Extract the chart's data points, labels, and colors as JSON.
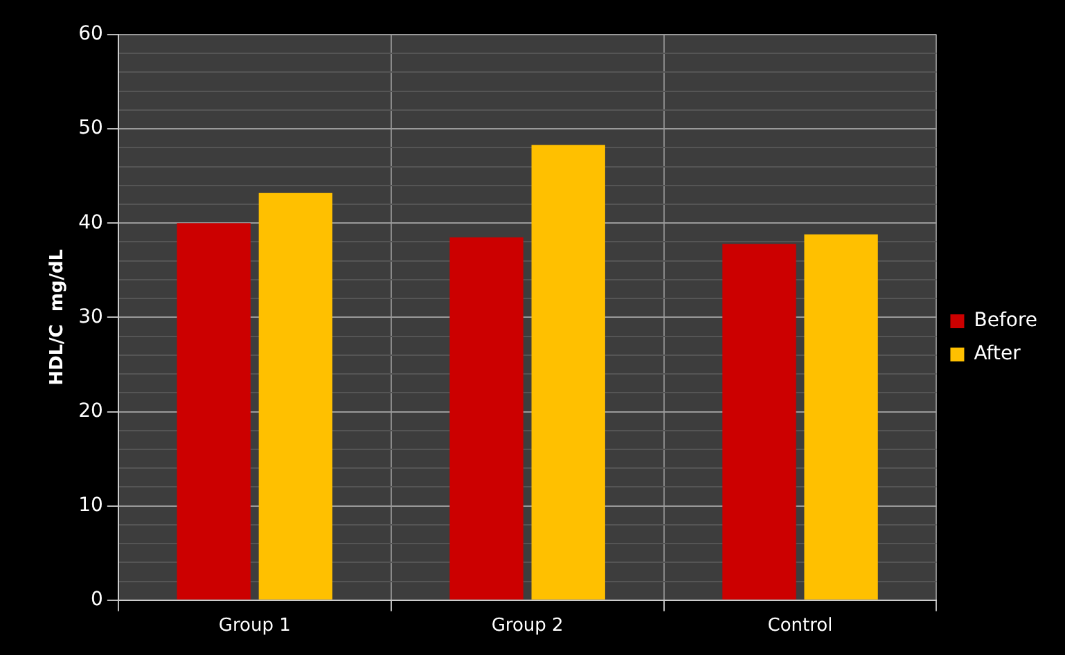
{
  "chart_data": {
    "type": "bar",
    "ylabel": "HDL/C  mg/dL",
    "categories": [
      "Group 1",
      "Group 2",
      "Control"
    ],
    "series": [
      {
        "name": "Before",
        "color": "#cc0000",
        "values": [
          40,
          38.5,
          37.8
        ]
      },
      {
        "name": "After",
        "color": "#ffc000",
        "values": [
          43.2,
          48.3,
          38.8
        ]
      }
    ],
    "ylim": [
      0,
      60
    ],
    "yticks": [
      0,
      {
        "value": 2,
        "label": null
      },
      {
        "value": 4,
        "label": null
      },
      {
        "value": 6,
        "label": null
      },
      {
        "value": 8,
        "label": null
      },
      10,
      {
        "value": 12,
        "label": null
      },
      {
        "value": 14,
        "label": null
      },
      {
        "value": 16,
        "label": null
      },
      {
        "value": 18,
        "label": null
      },
      20,
      {
        "value": 22,
        "label": null
      },
      {
        "value": 24,
        "label": null
      },
      {
        "value": 26,
        "label": null
      },
      {
        "value": 28,
        "label": null
      },
      30,
      {
        "value": 32,
        "label": null
      },
      {
        "value": 34,
        "label": null
      },
      {
        "value": 36,
        "label": null
      },
      {
        "value": 38,
        "label": null
      },
      40,
      {
        "value": 42,
        "label": null
      },
      {
        "value": 44,
        "label": null
      },
      {
        "value": 46,
        "label": null
      },
      {
        "value": 48,
        "label": null
      },
      50,
      {
        "value": 52,
        "label": null
      },
      {
        "value": 54,
        "label": null
      },
      {
        "value": 56,
        "label": null
      },
      {
        "value": 58,
        "label": null
      },
      60
    ],
    "grid": true,
    "legend": "right"
  }
}
